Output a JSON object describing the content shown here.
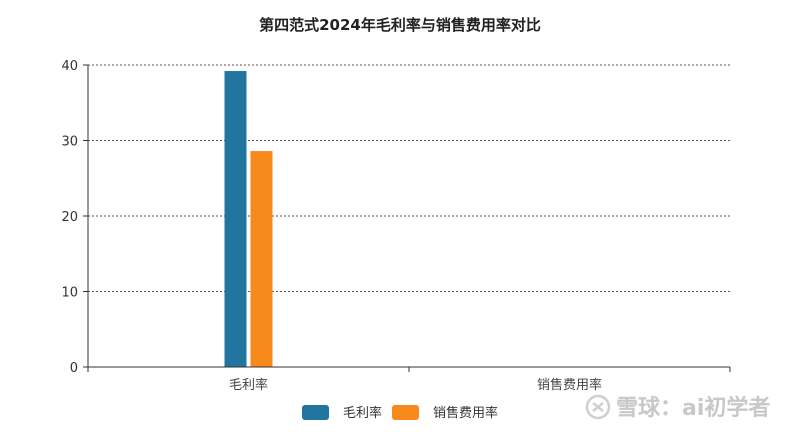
{
  "chart_data": {
    "type": "bar",
    "title": "第四范式2024年毛利率与销售费用率对比",
    "categories": [
      "毛利率",
      "销售费用率"
    ],
    "series": [
      {
        "name": "毛利率",
        "values": [
          39.2,
          0
        ],
        "color": "#21759f"
      },
      {
        "name": "销售费用率",
        "values": [
          28.6,
          0
        ],
        "color": "#f8891d"
      }
    ],
    "ylim": [
      0,
      40
    ],
    "yticks": [
      0,
      10,
      20,
      30,
      40
    ],
    "xlabel": "",
    "ylabel": "",
    "grid": "horizontal dashed",
    "legend_position": "bottom-center"
  },
  "watermark": {
    "text": "雪球：ai初学者",
    "icon": "snowball-logo-icon"
  }
}
